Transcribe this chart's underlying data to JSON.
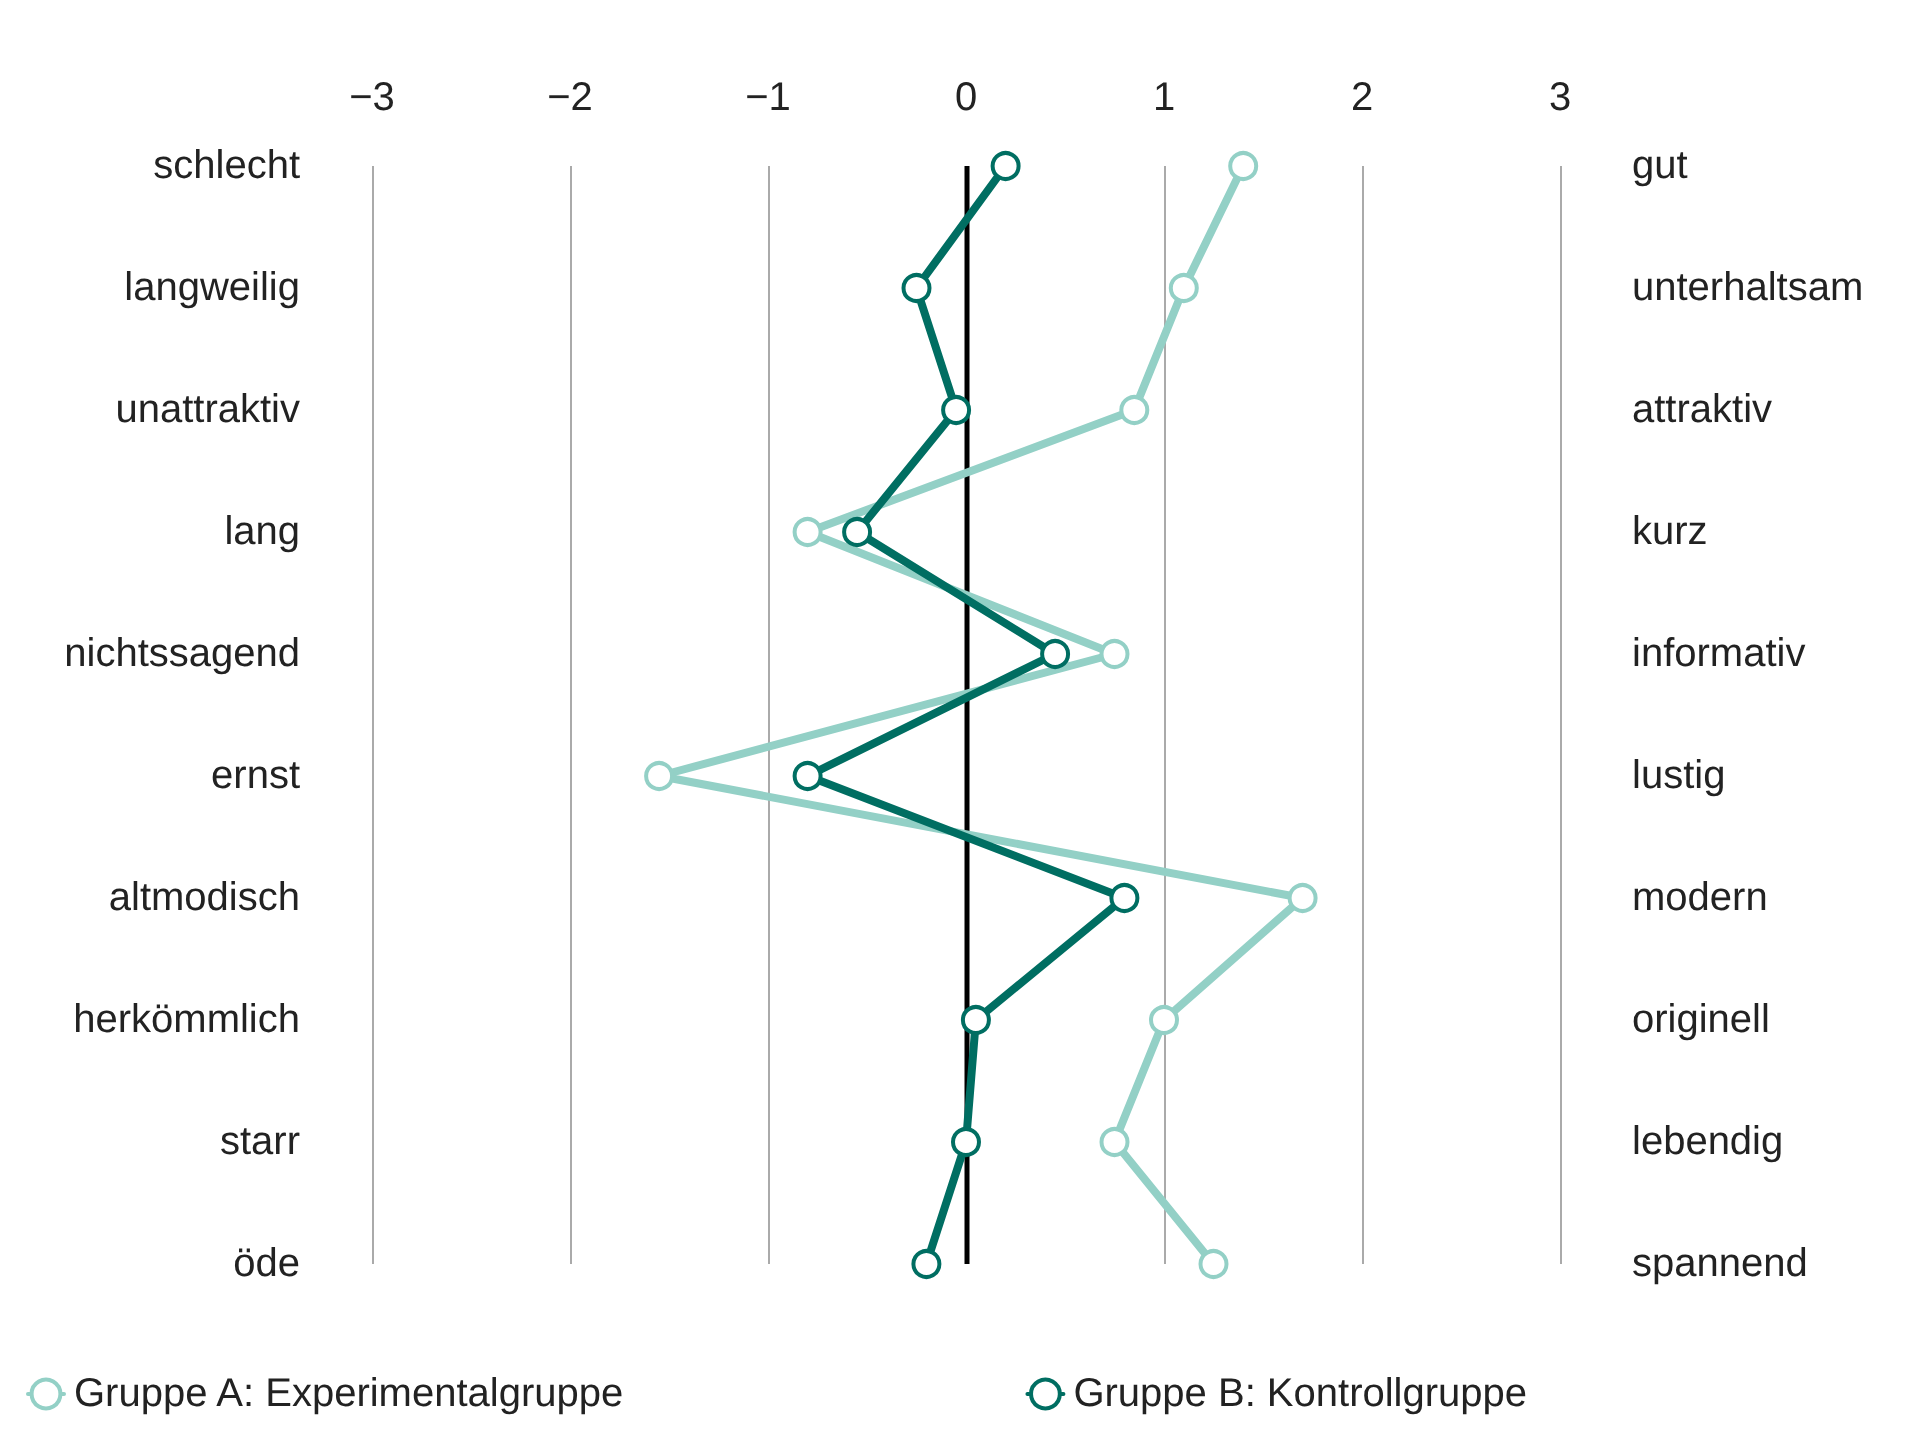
{
  "chart_data": {
    "type": "line",
    "orientation": "horizontal",
    "categories": [
      "schlecht",
      "langweilig",
      "unattraktiv",
      "lang",
      "nichtssagend",
      "ernst",
      "altmodisch",
      "herkömmlich",
      "starr",
      "öde"
    ],
    "y2_categories": [
      "gut",
      "unterhaltsam",
      "attraktiv",
      "kurz",
      "informativ",
      "lustig",
      "modern",
      "originell",
      "lebendig",
      "spannend"
    ],
    "series": [
      {
        "name": "Gruppe A: Experimentalgruppe",
        "color": "#93d0c6",
        "values": [
          1.4,
          1.1,
          0.85,
          -0.8,
          0.75,
          -1.55,
          1.7,
          1.0,
          0.75,
          1.25
        ]
      },
      {
        "name": "Gruppe B: Kontrollgruppe",
        "color": "#006e62",
        "values": [
          0.2,
          -0.25,
          -0.05,
          -0.55,
          0.45,
          -0.8,
          0.8,
          0.05,
          0.0,
          -0.2
        ]
      }
    ],
    "xlim": [
      -3,
      3
    ],
    "xticks": [
      {
        "value": -3,
        "label": "−3"
      },
      {
        "value": -2,
        "label": "−2"
      },
      {
        "value": -1,
        "label": "−1"
      },
      0,
      1,
      2,
      3
    ],
    "ref_lines": [
      {
        "axis": "x",
        "value": 0,
        "color": "#000000"
      }
    ],
    "grid": "x",
    "legend": "bottom",
    "marker": "circle",
    "line_style": "solid"
  }
}
